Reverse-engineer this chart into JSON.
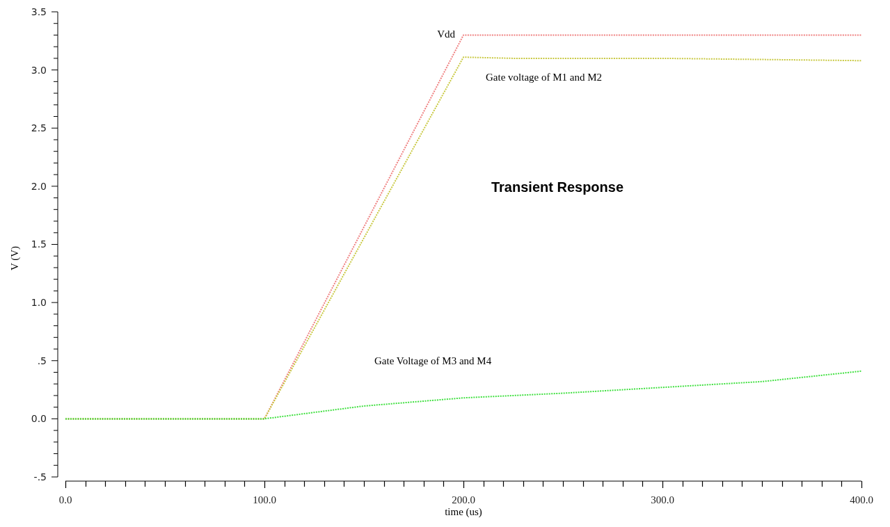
{
  "chart_data": {
    "type": "line",
    "title": "Transient Response",
    "xlabel": "time (us)",
    "ylabel": "V (V)",
    "xlim": [
      0,
      400
    ],
    "ylim": [
      -0.5,
      3.5
    ],
    "xticks": [
      {
        "value": 0,
        "label": "0.0"
      },
      {
        "value": 10,
        "label": null
      },
      {
        "value": 20,
        "label": null
      },
      {
        "value": 30,
        "label": null
      },
      {
        "value": 40,
        "label": null
      },
      {
        "value": 50,
        "label": null
      },
      {
        "value": 60,
        "label": null
      },
      {
        "value": 70,
        "label": null
      },
      {
        "value": 80,
        "label": null
      },
      {
        "value": 90,
        "label": null
      },
      {
        "value": 100,
        "label": "100.0"
      },
      {
        "value": 110,
        "label": null
      },
      {
        "value": 120,
        "label": null
      },
      {
        "value": 130,
        "label": null
      },
      {
        "value": 140,
        "label": null
      },
      {
        "value": 150,
        "label": null
      },
      {
        "value": 160,
        "label": null
      },
      {
        "value": 170,
        "label": null
      },
      {
        "value": 180,
        "label": null
      },
      {
        "value": 190,
        "label": null
      },
      {
        "value": 200,
        "label": "200.0"
      },
      {
        "value": 210,
        "label": null
      },
      {
        "value": 220,
        "label": null
      },
      {
        "value": 230,
        "label": null
      },
      {
        "value": 240,
        "label": null
      },
      {
        "value": 250,
        "label": null
      },
      {
        "value": 260,
        "label": null
      },
      {
        "value": 270,
        "label": null
      },
      {
        "value": 280,
        "label": null
      },
      {
        "value": 290,
        "label": null
      },
      {
        "value": 300,
        "label": "300.0"
      },
      {
        "value": 310,
        "label": null
      },
      {
        "value": 320,
        "label": null
      },
      {
        "value": 330,
        "label": null
      },
      {
        "value": 340,
        "label": null
      },
      {
        "value": 350,
        "label": null
      },
      {
        "value": 360,
        "label": null
      },
      {
        "value": 370,
        "label": null
      },
      {
        "value": 380,
        "label": null
      },
      {
        "value": 390,
        "label": null
      },
      {
        "value": 400,
        "label": "400.0"
      }
    ],
    "yticks": [
      {
        "value": -0.5,
        "label": "-.5"
      },
      {
        "value": -0.4,
        "label": null
      },
      {
        "value": -0.3,
        "label": null
      },
      {
        "value": -0.2,
        "label": null
      },
      {
        "value": -0.1,
        "label": null
      },
      {
        "value": 0,
        "label": "0.0"
      },
      {
        "value": 0.1,
        "label": null
      },
      {
        "value": 0.2,
        "label": null
      },
      {
        "value": 0.3,
        "label": null
      },
      {
        "value": 0.4,
        "label": null
      },
      {
        "value": 0.5,
        "label": ".5"
      },
      {
        "value": 0.6,
        "label": null
      },
      {
        "value": 0.7,
        "label": null
      },
      {
        "value": 0.8,
        "label": null
      },
      {
        "value": 0.9,
        "label": null
      },
      {
        "value": 1,
        "label": "1.0"
      },
      {
        "value": 1.1,
        "label": null
      },
      {
        "value": 1.2,
        "label": null
      },
      {
        "value": 1.3,
        "label": null
      },
      {
        "value": 1.4,
        "label": null
      },
      {
        "value": 1.5,
        "label": "1.5"
      },
      {
        "value": 1.6,
        "label": null
      },
      {
        "value": 1.7,
        "label": null
      },
      {
        "value": 1.8,
        "label": null
      },
      {
        "value": 1.9,
        "label": null
      },
      {
        "value": 2,
        "label": "2.0"
      },
      {
        "value": 2.1,
        "label": null
      },
      {
        "value": 2.2,
        "label": null
      },
      {
        "value": 2.3,
        "label": null
      },
      {
        "value": 2.4,
        "label": null
      },
      {
        "value": 2.5,
        "label": "2.5"
      },
      {
        "value": 2.6,
        "label": null
      },
      {
        "value": 2.7,
        "label": null
      },
      {
        "value": 2.8,
        "label": null
      },
      {
        "value": 2.9,
        "label": null
      },
      {
        "value": 3,
        "label": "3.0"
      },
      {
        "value": 3.1,
        "label": null
      },
      {
        "value": 3.2,
        "label": null
      },
      {
        "value": 3.3,
        "label": null
      },
      {
        "value": 3.4,
        "label": null
      },
      {
        "value": 3.5,
        "label": "3.5"
      }
    ],
    "line_style": "dotted",
    "grid": false,
    "legend": false,
    "series": [
      {
        "name": "Vdd",
        "color": "#ef8080",
        "x": [
          0,
          100,
          200,
          400
        ],
        "values": [
          0,
          0,
          3.3,
          3.3
        ]
      },
      {
        "name": "Gate voltage of M1 and M2",
        "color": "#c8c840",
        "x": [
          0,
          100,
          200,
          225,
          300,
          400
        ],
        "values": [
          0,
          0,
          3.11,
          3.1,
          3.1,
          3.08
        ]
      },
      {
        "name": "Gate Voltage of M3 and M4",
        "color": "#40e040",
        "x": [
          0,
          100,
          150,
          200,
          250,
          300,
          350,
          400
        ],
        "values": [
          0,
          0,
          0.11,
          0.18,
          0.22,
          0.27,
          0.32,
          0.41
        ]
      }
    ]
  }
}
